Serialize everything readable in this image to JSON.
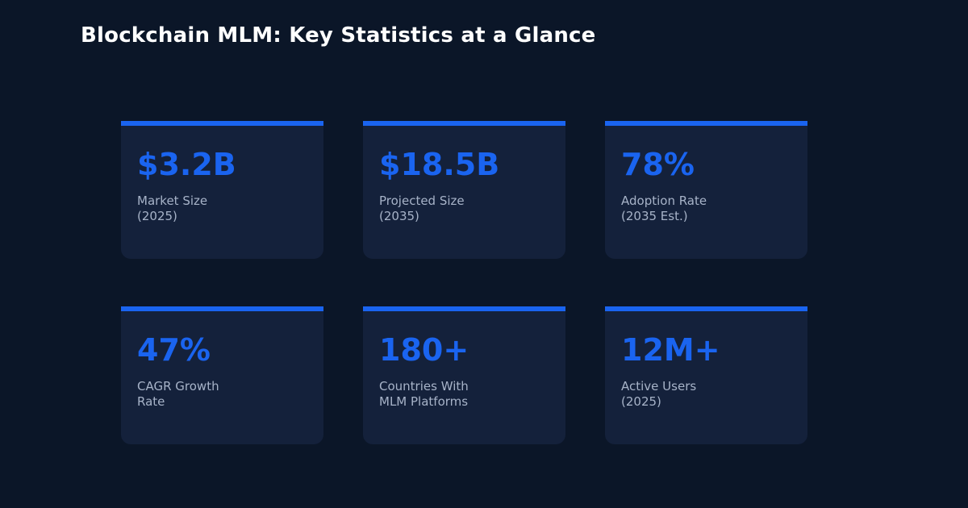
{
  "title": "Blockchain MLM: Key Statistics at a Glance",
  "colors": {
    "background": "#0b1628",
    "card": "#14213b",
    "accent": "#1a64f0",
    "label": "#a7b3c8"
  },
  "stats": [
    {
      "value": "$3.2B",
      "label": "Market Size\n(2025)"
    },
    {
      "value": "$18.5B",
      "label": "Projected Size\n(2035)"
    },
    {
      "value": "78%",
      "label": "Adoption Rate\n(2035 Est.)"
    },
    {
      "value": "47%",
      "label": "CAGR Growth\nRate"
    },
    {
      "value": "180+",
      "label": "Countries With\nMLM Platforms"
    },
    {
      "value": "12M+",
      "label": "Active Users\n(2025)"
    }
  ]
}
